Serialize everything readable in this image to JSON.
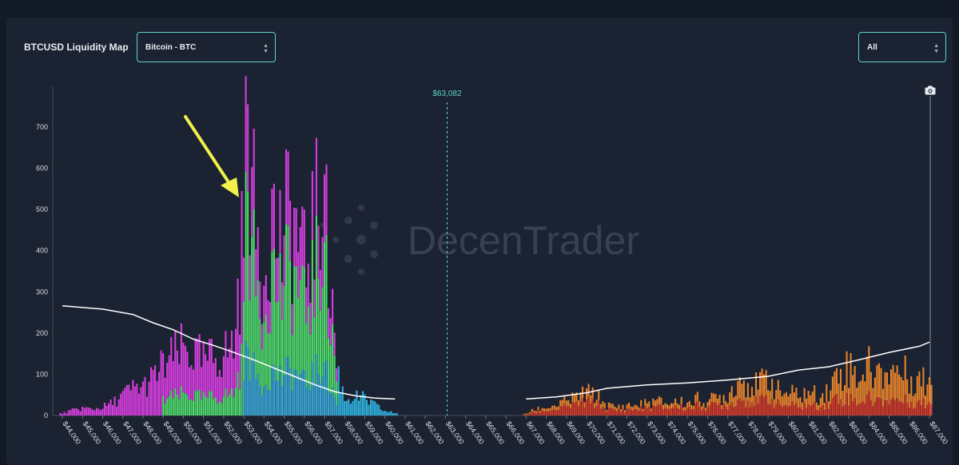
{
  "header": {
    "title": "BTCUSD Liquidity Map",
    "asset_select": "Bitcoin - BTC",
    "range_select": "All"
  },
  "watermark": "DecenTrader",
  "icons": {
    "camera": "camera-icon",
    "select_arrows": "up-down-chevron-icon",
    "annotation": "yellow-arrow"
  },
  "colors": {
    "magenta": "#d63ee0",
    "green": "#4fd96b",
    "blue": "#3aa6d6",
    "cyan_small": "#2fb2de",
    "orange": "#e8832a",
    "red": "#d23a2a",
    "line": "#ffffff",
    "current_price": "#5fd6c9",
    "arrow": "#f2f04a"
  },
  "chart_data": {
    "type": "bar",
    "current_price_label": "$63,082",
    "current_price": 63082,
    "ylim": [
      0,
      760
    ],
    "yticks": [
      0,
      100,
      200,
      300,
      400,
      500,
      600,
      700
    ],
    "xlim": [
      43500,
      87500
    ],
    "xticks": [
      "$44,000",
      "$45,000",
      "$46,000",
      "$47,000",
      "$48,000",
      "$49,000",
      "$50,000",
      "$51,000",
      "$52,000",
      "$53,000",
      "$54,000",
      "$55,000",
      "$56,000",
      "$57,000",
      "$58,000",
      "$59,000",
      "$60,000",
      "$61,000",
      "$62,000",
      "$63,000",
      "$64,000",
      "$65,000",
      "$66,000",
      "$67,000",
      "$68,000",
      "$69,000",
      "$70,000",
      "$71,000",
      "$72,000",
      "$73,000",
      "$74,000",
      "$75,000",
      "$76,000",
      "$77,000",
      "$78,000",
      "$79,000",
      "$80,000",
      "$81,000",
      "$82,000",
      "$83,000",
      "$84,000",
      "$85,000",
      "$86,000",
      "$87,000"
    ],
    "xtick_values": [
      44000,
      45000,
      46000,
      47000,
      48000,
      49000,
      50000,
      51000,
      52000,
      53000,
      54000,
      55000,
      56000,
      57000,
      58000,
      59000,
      60000,
      61000,
      62000,
      63000,
      64000,
      65000,
      66000,
      67000,
      68000,
      69000,
      70000,
      71000,
      72000,
      73000,
      74000,
      75000,
      76000,
      77000,
      78000,
      79000,
      80000,
      81000,
      82000,
      83000,
      84000,
      85000,
      86000,
      87000
    ],
    "long_profile": [
      [
        44000,
        5
      ],
      [
        44500,
        12
      ],
      [
        45000,
        18
      ],
      [
        45500,
        15
      ],
      [
        46000,
        20
      ],
      [
        46500,
        30
      ],
      [
        47000,
        50
      ],
      [
        47500,
        65
      ],
      [
        48000,
        70
      ],
      [
        48500,
        90
      ],
      [
        49000,
        120
      ],
      [
        49500,
        140
      ],
      [
        50000,
        160
      ],
      [
        50500,
        150
      ],
      [
        51000,
        130
      ],
      [
        51500,
        140
      ],
      [
        52000,
        150
      ],
      [
        52500,
        170
      ],
      [
        53000,
        450
      ],
      [
        53200,
        755
      ],
      [
        53400,
        520
      ],
      [
        53800,
        380
      ],
      [
        54000,
        360
      ],
      [
        54300,
        500
      ],
      [
        54700,
        430
      ],
      [
        55000,
        420
      ],
      [
        55300,
        500
      ],
      [
        55700,
        430
      ],
      [
        56000,
        350
      ],
      [
        56300,
        430
      ],
      [
        56700,
        480
      ],
      [
        57000,
        580
      ],
      [
        57200,
        300
      ],
      [
        57400,
        280
      ],
      [
        57600,
        120
      ],
      [
        58000,
        40
      ],
      [
        58500,
        45
      ],
      [
        59000,
        40
      ],
      [
        59500,
        25
      ],
      [
        60000,
        10
      ],
      [
        60500,
        6
      ]
    ],
    "short_profile": [
      [
        67000,
        5
      ],
      [
        67500,
        15
      ],
      [
        68000,
        20
      ],
      [
        68500,
        25
      ],
      [
        69000,
        35
      ],
      [
        69500,
        45
      ],
      [
        70000,
        55
      ],
      [
        70500,
        50
      ],
      [
        71000,
        25
      ],
      [
        71500,
        20
      ],
      [
        72000,
        25
      ],
      [
        72500,
        25
      ],
      [
        73000,
        30
      ],
      [
        73500,
        35
      ],
      [
        74000,
        30
      ],
      [
        74500,
        35
      ],
      [
        75000,
        30
      ],
      [
        75500,
        40
      ],
      [
        76000,
        35
      ],
      [
        76500,
        45
      ],
      [
        77000,
        50
      ],
      [
        77500,
        90
      ],
      [
        78000,
        85
      ],
      [
        78500,
        70
      ],
      [
        79000,
        100
      ],
      [
        79500,
        60
      ],
      [
        80000,
        55
      ],
      [
        80500,
        50
      ],
      [
        81000,
        55
      ],
      [
        81500,
        50
      ],
      [
        82000,
        60
      ],
      [
        82500,
        110
      ],
      [
        83000,
        120
      ],
      [
        83500,
        100
      ],
      [
        84000,
        120
      ],
      [
        84500,
        100
      ],
      [
        85000,
        115
      ],
      [
        85500,
        110
      ],
      [
        86000,
        95
      ],
      [
        86500,
        90
      ],
      [
        87000,
        80
      ]
    ],
    "cumulative_line_left": [
      [
        44000,
        266
      ],
      [
        46000,
        258
      ],
      [
        47500,
        245
      ],
      [
        48500,
        225
      ],
      [
        49500,
        208
      ],
      [
        50500,
        185
      ],
      [
        51500,
        170
      ],
      [
        52500,
        153
      ],
      [
        53500,
        135
      ],
      [
        54500,
        115
      ],
      [
        55500,
        95
      ],
      [
        56500,
        75
      ],
      [
        57500,
        58
      ],
      [
        58500,
        48
      ],
      [
        59500,
        42
      ],
      [
        60500,
        40
      ]
    ],
    "cumulative_line_right": [
      [
        67000,
        40
      ],
      [
        68500,
        45
      ],
      [
        70000,
        55
      ],
      [
        71000,
        66
      ],
      [
        73000,
        74
      ],
      [
        75000,
        79
      ],
      [
        77000,
        86
      ],
      [
        79000,
        95
      ],
      [
        80500,
        110
      ],
      [
        82000,
        118
      ],
      [
        83500,
        135
      ],
      [
        85000,
        153
      ],
      [
        86500,
        168
      ],
      [
        87000,
        178
      ]
    ]
  }
}
